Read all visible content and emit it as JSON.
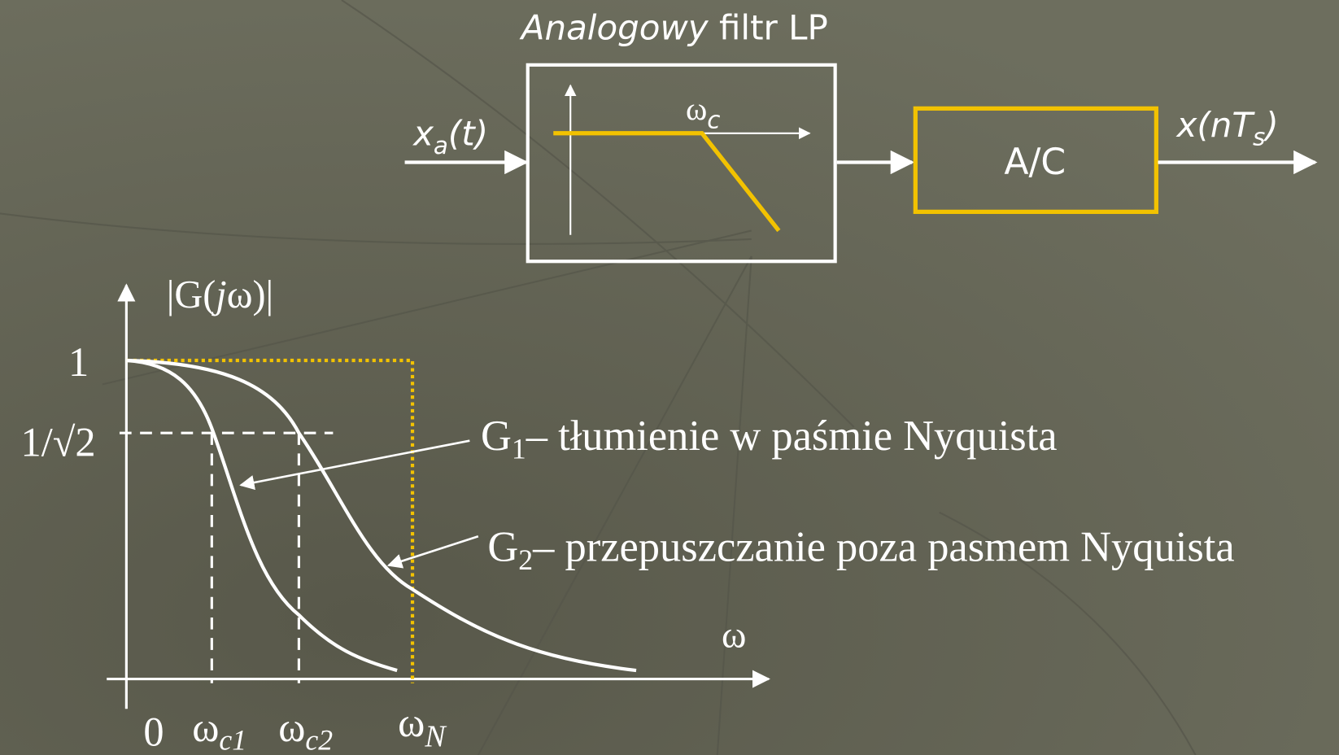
{
  "title": {
    "italic": "Analogowy",
    "rest": "filtr LP"
  },
  "input": {
    "symbol": "x",
    "subscript": "a",
    "arg": "(t)"
  },
  "filter": {
    "symbol": "ω",
    "subscript": "c"
  },
  "converter": {
    "label": "A/C"
  },
  "output": {
    "symbol": "x(nT",
    "subscript": "s",
    "close": ")"
  },
  "graph": {
    "y_label": {
      "open": "|G(",
      "italic": "j",
      "close": "ω)|"
    },
    "y_ticks": [
      "1",
      "1/√2"
    ],
    "x_ticks": [
      {
        "symbol": "0"
      },
      {
        "symbol": "ω",
        "subscript": "c1"
      },
      {
        "symbol": "ω",
        "subscript": "c2"
      },
      {
        "symbol": "ω",
        "subscript": "N"
      }
    ],
    "x_label": "ω",
    "annotations": [
      {
        "symbol": "G",
        "subscript": "1",
        "text": "– tłumienie w paśmie Nyquista"
      },
      {
        "symbol": "G",
        "subscript": "2",
        "text": "– przepuszczanie poza pasmem Nyquista"
      }
    ]
  }
}
